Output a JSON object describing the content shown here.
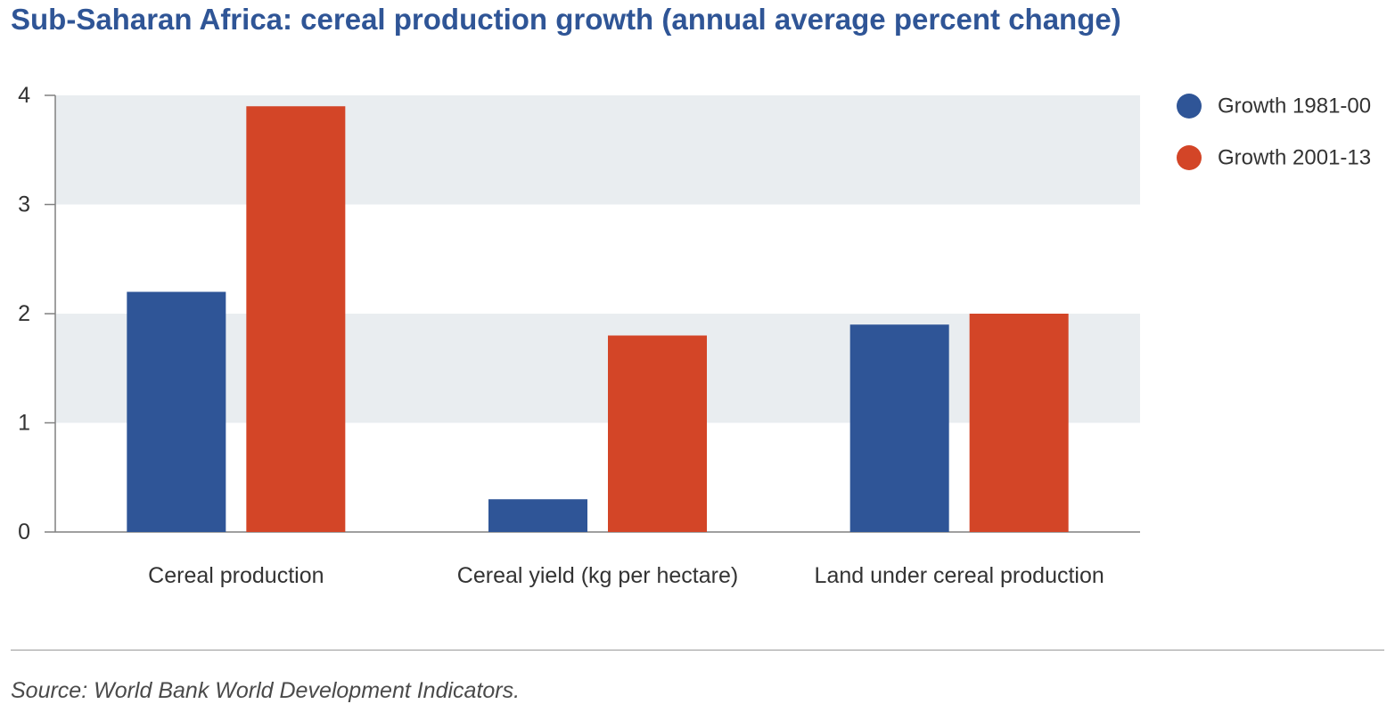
{
  "chart_data": {
    "type": "bar",
    "title": "Sub-Saharan Africa: cereal production growth (annual average percent change)",
    "categories": [
      "Cereal production",
      "Cereal yield (kg per hectare)",
      "Land under cereal production"
    ],
    "series": [
      {
        "name": "Growth 1981-00",
        "color": "#2f5597",
        "values": [
          2.2,
          0.3,
          1.9
        ]
      },
      {
        "name": "Growth 2001-13",
        "color": "#d34527",
        "values": [
          3.9,
          1.8,
          2.0
        ]
      }
    ],
    "ylim": [
      0,
      4
    ],
    "yticks": [
      "0",
      "1",
      "2",
      "3",
      "4"
    ],
    "xlabel": "",
    "ylabel": "",
    "legend_position": "top-right",
    "band_color": "#e9edf0"
  },
  "source": "Source: World Bank World Development Indicators."
}
